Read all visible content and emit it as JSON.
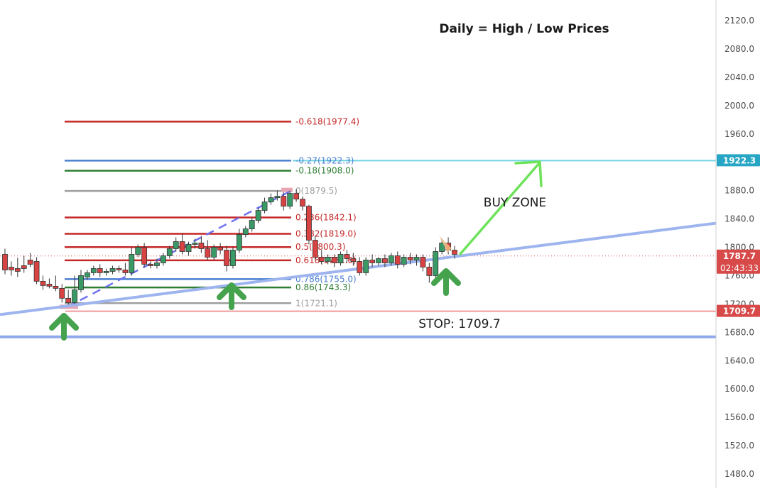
{
  "chart_data": {
    "type": "candlestick",
    "title": "Daily = High / Low Prices",
    "y_axis": {
      "ticks": [
        2120.0,
        2080.0,
        2040.0,
        2000.0,
        1960.0,
        1920.0,
        1880.0,
        1840.0,
        1800.0,
        1760.0,
        1720.0,
        1680.0,
        1640.0,
        1600.0,
        1560.0,
        1520.0,
        1480.0
      ],
      "tick_labels": [
        "2120.0",
        "2080.0",
        "2040.0",
        "2000.0",
        "1960.0",
        "1920.0",
        "1880.0",
        "1840.0",
        "1800.0",
        "1760.0",
        "1720.0",
        "1680.0",
        "1640.0",
        "1600.0",
        "1560.0",
        "1520.0",
        "1480.0"
      ],
      "range": [
        1462,
        2138
      ],
      "position": "right"
    },
    "fibonacci_levels": [
      {
        "ratio": "-0.618",
        "price": 1977.4,
        "label": "-0.618(1977.4)",
        "color": "#c62828"
      },
      {
        "ratio": "-0.27",
        "price": 1922.3,
        "label": "-0.27(1922.3)",
        "color": "#4a7fd1"
      },
      {
        "ratio": "-0.18",
        "price": 1908.0,
        "label": "-0.18(1908.0)",
        "color": "#2e7d32"
      },
      {
        "ratio": "0",
        "price": 1879.5,
        "label": "0(1879.5)",
        "color": "#9e9e9e"
      },
      {
        "ratio": "0.236",
        "price": 1842.1,
        "label": "0.236(1842.1)",
        "color": "#c62828"
      },
      {
        "ratio": "0.382",
        "price": 1819.0,
        "label": "0.382(1819.0)",
        "color": "#c62828"
      },
      {
        "ratio": "0.5",
        "price": 1800.3,
        "label": "0.5(1800.3)",
        "color": "#c62828"
      },
      {
        "ratio": "0.618",
        "price": 1781.6,
        "label": "0.618(1781.6)",
        "color": "#c62828"
      },
      {
        "ratio": "0.786",
        "price": 1755.0,
        "label": "0.786(1755.0)",
        "color": "#4a7fd1"
      },
      {
        "ratio": "0.86",
        "price": 1743.3,
        "label": "0.86(1743.3)",
        "color": "#2e7d32"
      },
      {
        "ratio": "1",
        "price": 1721.1,
        "label": "1(1721.1)",
        "color": "#9e9e9e"
      }
    ],
    "price_tags": [
      {
        "price": 1922.3,
        "label": "1922.3",
        "color": "#26a6c4"
      },
      {
        "price": 1787.7,
        "label": "1787.7",
        "sublabel": "02:43:33",
        "color": "#d84a4a"
      },
      {
        "price": 1709.7,
        "label": "1709.7",
        "color": "#d84a4a"
      }
    ],
    "horizontal_lines": [
      {
        "name": "target",
        "price": 1922.3,
        "color": "#6fd4e2"
      },
      {
        "name": "stop",
        "price": 1709.7,
        "color": "#ef9a9a"
      },
      {
        "name": "current-price",
        "price": 1787.7,
        "color": "#d84a4a",
        "dotted": true
      },
      {
        "name": "lower-support",
        "price": 1673.5,
        "color": "#8fa8ec"
      }
    ],
    "trendline": {
      "from_price": 1705.0,
      "to_price": 1834.0,
      "color": "#9db4ee"
    },
    "annotations": {
      "buy_zone": "BUY ZONE",
      "stop": "STOP: 1709.7"
    },
    "candles": [
      [
        1790,
        1798,
        1768,
        1762
      ],
      [
        1772,
        1780,
        1768,
        1760
      ],
      [
        1770,
        1785,
        1766,
        1758
      ],
      [
        1774,
        1788,
        1770,
        1764
      ],
      [
        1782,
        1792,
        1776,
        1772
      ],
      [
        1780,
        1786,
        1752,
        1748
      ],
      [
        1752,
        1760,
        1746,
        1740
      ],
      [
        1748,
        1756,
        1745,
        1742
      ],
      [
        1745,
        1760,
        1742,
        1738
      ],
      [
        1742,
        1748,
        1728,
        1722
      ],
      [
        1728,
        1740,
        1722,
        1719
      ],
      [
        1722,
        1760,
        1740,
        1720
      ],
      [
        1740,
        1768,
        1760,
        1736
      ],
      [
        1758,
        1768,
        1764,
        1754
      ],
      [
        1764,
        1774,
        1770,
        1760
      ],
      [
        1770,
        1776,
        1764,
        1758
      ],
      [
        1764,
        1770,
        1766,
        1760
      ],
      [
        1766,
        1774,
        1770,
        1762
      ],
      [
        1770,
        1774,
        1768,
        1764
      ],
      [
        1768,
        1778,
        1764,
        1760
      ],
      [
        1764,
        1800,
        1790,
        1760
      ],
      [
        1790,
        1804,
        1800,
        1786
      ],
      [
        1800,
        1806,
        1776,
        1772
      ],
      [
        1776,
        1780,
        1774,
        1770
      ],
      [
        1774,
        1784,
        1778,
        1770
      ],
      [
        1778,
        1792,
        1788,
        1774
      ],
      [
        1788,
        1802,
        1798,
        1784
      ],
      [
        1798,
        1814,
        1808,
        1794
      ],
      [
        1808,
        1820,
        1794,
        1790
      ],
      [
        1794,
        1808,
        1804,
        1788
      ],
      [
        1804,
        1812,
        1806,
        1798
      ],
      [
        1806,
        1816,
        1798,
        1792
      ],
      [
        1798,
        1810,
        1786,
        1782
      ],
      [
        1786,
        1804,
        1800,
        1782
      ],
      [
        1800,
        1806,
        1796,
        1790
      ],
      [
        1796,
        1802,
        1774,
        1766
      ],
      [
        1774,
        1800,
        1796,
        1770
      ],
      [
        1796,
        1826,
        1818,
        1792
      ],
      [
        1818,
        1830,
        1826,
        1814
      ],
      [
        1826,
        1842,
        1838,
        1822
      ],
      [
        1838,
        1856,
        1852,
        1834
      ],
      [
        1852,
        1870,
        1864,
        1848
      ],
      [
        1864,
        1876,
        1870,
        1860
      ],
      [
        1870,
        1880,
        1872,
        1866
      ],
      [
        1872,
        1878,
        1858,
        1852
      ],
      [
        1858,
        1880,
        1876,
        1854
      ],
      [
        1876,
        1882,
        1868,
        1864
      ],
      [
        1868,
        1872,
        1858,
        1852
      ],
      [
        1858,
        1860,
        1810,
        1804
      ],
      [
        1810,
        1816,
        1786,
        1782
      ],
      [
        1786,
        1796,
        1780,
        1776
      ],
      [
        1780,
        1790,
        1786,
        1776
      ],
      [
        1786,
        1790,
        1778,
        1772
      ],
      [
        1778,
        1794,
        1790,
        1774
      ],
      [
        1790,
        1796,
        1784,
        1778
      ],
      [
        1784,
        1792,
        1780,
        1774
      ],
      [
        1780,
        1786,
        1764,
        1760
      ],
      [
        1764,
        1786,
        1782,
        1760
      ],
      [
        1782,
        1790,
        1778,
        1772
      ],
      [
        1778,
        1786,
        1784,
        1774
      ],
      [
        1784,
        1790,
        1778,
        1772
      ],
      [
        1778,
        1792,
        1788,
        1774
      ],
      [
        1788,
        1794,
        1776,
        1770
      ],
      [
        1776,
        1790,
        1786,
        1772
      ],
      [
        1786,
        1792,
        1782,
        1776
      ],
      [
        1782,
        1790,
        1786,
        1774
      ],
      [
        1786,
        1790,
        1772,
        1766
      ],
      [
        1772,
        1778,
        1760,
        1750
      ],
      [
        1760,
        1800,
        1794,
        1756
      ],
      [
        1794,
        1812,
        1806,
        1790
      ],
      [
        1806,
        1814,
        1796,
        1790
      ],
      [
        1796,
        1802,
        1790,
        1784
      ]
    ],
    "grid": false,
    "legend": "none"
  },
  "title_text": "Daily = High / Low Prices",
  "buy_zone_text": "BUY ZONE",
  "stop_text": "STOP: 1709.7"
}
